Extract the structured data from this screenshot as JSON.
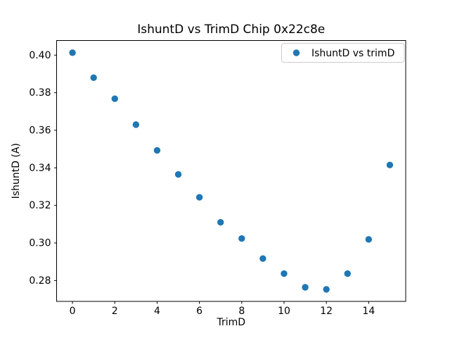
{
  "chart": {
    "title": "IshuntD vs TrimD Chip 0x22c8e",
    "xlabel": "TrimD",
    "ylabel": "IshuntD (A)",
    "legend_label": "IshuntD vs trimD"
  },
  "chart_data": {
    "type": "scatter",
    "title": "IshuntD vs TrimD Chip 0x22c8e",
    "xlabel": "TrimD",
    "ylabel": "IshuntD (A)",
    "legend": [
      "IshuntD vs trimD"
    ],
    "legend_position": "upper right",
    "grid": false,
    "marker_color": "#1f77b4",
    "x": [
      0,
      1,
      2,
      3,
      4,
      5,
      6,
      7,
      8,
      9,
      10,
      11,
      12,
      13,
      14,
      15
    ],
    "y": [
      0.4013,
      0.388,
      0.3768,
      0.363,
      0.3493,
      0.3365,
      0.3243,
      0.311,
      0.3024,
      0.2917,
      0.2837,
      0.2764,
      0.2753,
      0.2837,
      0.3019,
      0.3415
    ],
    "xlim": [
      -0.75,
      15.75
    ],
    "ylim": [
      0.2689,
      0.4078
    ],
    "xticks": [
      0,
      2,
      4,
      6,
      8,
      10,
      12,
      14
    ],
    "yticks": [
      0.28,
      0.3,
      0.32,
      0.34,
      0.36,
      0.38,
      0.4
    ]
  }
}
